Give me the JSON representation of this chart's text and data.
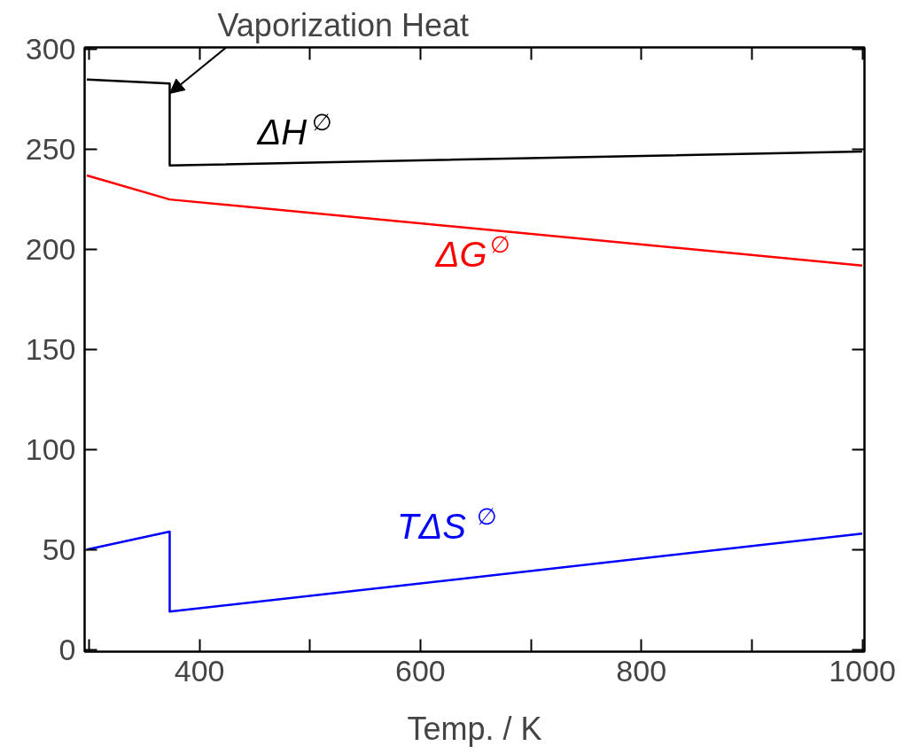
{
  "chart_data": {
    "type": "line",
    "xlabel": "Temp. / K",
    "xlim": [
      296,
      1002
    ],
    "ylim": [
      -1,
      301
    ],
    "xticks": [
      {
        "value": 300,
        "label": null
      },
      400,
      {
        "value": 500,
        "label": null
      },
      600,
      {
        "value": 700,
        "label": null
      },
      800,
      {
        "value": 900,
        "label": null
      },
      1000
    ],
    "yticks": [
      0,
      50,
      100,
      150,
      200,
      250,
      300
    ],
    "grid": false,
    "marker": "none",
    "line_style": "solid",
    "series": [
      {
        "name": "ΔH$^{∅}$",
        "color": "#000000",
        "x": [
          298,
          373,
          373,
          1000
        ],
        "values": [
          285,
          283,
          242,
          249
        ]
      },
      {
        "name": "ΔG$^{∅}$",
        "color": "#ff0000",
        "x": [
          298,
          373,
          1000
        ],
        "values": [
          237,
          225,
          192
        ]
      },
      {
        "name": "TΔS$^{∅}$",
        "color": "#0000ff",
        "x": [
          298,
          373,
          373,
          1000
        ],
        "values": [
          50,
          59,
          19,
          58
        ]
      }
    ],
    "annotations": [
      {
        "text": "Vaporization Heat",
        "x": 373,
        "y": 278
      }
    ]
  }
}
